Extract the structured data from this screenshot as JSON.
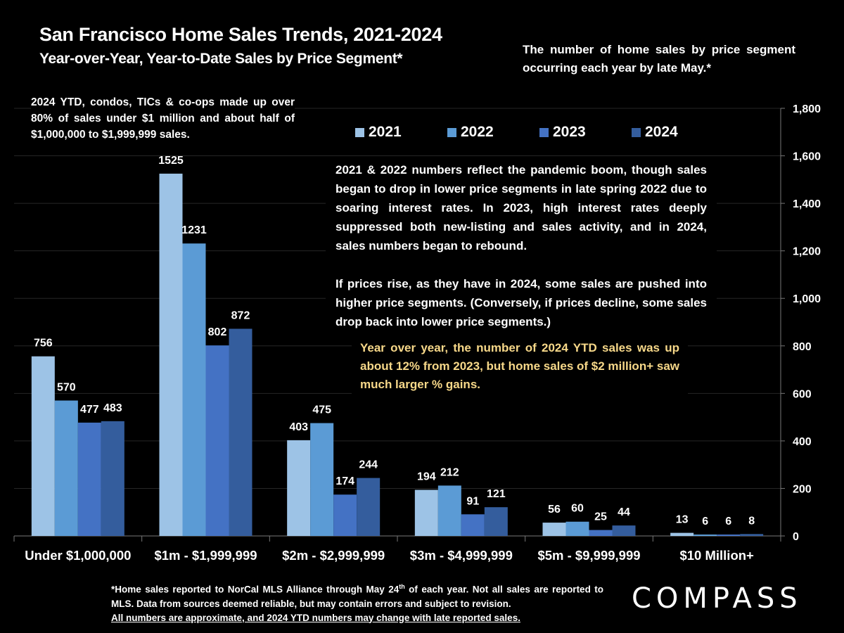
{
  "header": {
    "title": "San Francisco Home Sales Trends, 2021-2024",
    "subtitle": "Year-over-Year, Year-to-Date Sales by Price Segment*",
    "description": "The number of home sales by price segment occurring each year by late May.*"
  },
  "annotations": {
    "left_note": "2024 YTD, condos, TICs & co-ops made up over 80% of sales under $1 million and about half of $1,000,000 to $1,999,999 sales.",
    "middle_note_1": "2021 & 2022 numbers reflect the pandemic boom, though sales began to drop in lower price segments in late spring 2022 due to soaring interest rates. In 2023, high interest rates deeply suppressed both new-listing and sales activity, and in 2024, sales numbers began to rebound.",
    "middle_note_2": "If prices rise, as they have in 2024, some sales are pushed into higher price segments. (Conversely, if prices decline, some sales drop back into lower price segments.)",
    "yellow_note": "Year over year, the number of 2024 YTD sales was up about 12% from 2023, but home sales of $2 million+ saw much larger % gains.",
    "yellow_note_color": "#f7d889"
  },
  "footnote": {
    "line1_pre": "*Home sales reported to NorCal MLS Alliance through May 24",
    "line1_sup": "th",
    "line1_post": " of each year. Not all sales are reported to MLS. Data from sources deemed reliable, but may contain errors and subject to revision.",
    "underlined": "All numbers are approximate, and 2024 YTD numbers may change with late reported sales."
  },
  "brand": {
    "logo_text": "COMPASS"
  },
  "chart_data": {
    "type": "bar",
    "title": "San Francisco Home Sales Trends, 2021-2024",
    "xlabel": "",
    "ylabel": "",
    "categories": [
      "Under $1,000,000",
      "$1m - $1,999,999",
      "$2m - $2,999,999",
      "$3m - $4,999,999",
      "$5m - $9,999,999",
      "$10 Million+"
    ],
    "series": [
      {
        "name": "2021",
        "color": "#9dc3e6",
        "values": [
          756,
          1525,
          403,
          194,
          56,
          13
        ]
      },
      {
        "name": "2022",
        "color": "#5b9bd5",
        "values": [
          570,
          1231,
          475,
          212,
          60,
          6
        ]
      },
      {
        "name": "2023",
        "color": "#4472c4",
        "values": [
          477,
          802,
          174,
          91,
          25,
          6
        ]
      },
      {
        "name": "2024",
        "color": "#345d9d",
        "values": [
          483,
          872,
          244,
          121,
          44,
          8
        ]
      }
    ],
    "ylim": [
      0,
      1800
    ],
    "yticks": [
      0,
      200,
      400,
      600,
      800,
      1000,
      1200,
      1400,
      1600,
      1800
    ],
    "ytick_labels": [
      "0",
      "200",
      "400",
      "600",
      "800",
      "1,000",
      "1,200",
      "1,400",
      "1,600",
      "1,800"
    ],
    "y_axis_side": "right",
    "grid": true,
    "legend_position": "top-center",
    "data_labels": true
  }
}
